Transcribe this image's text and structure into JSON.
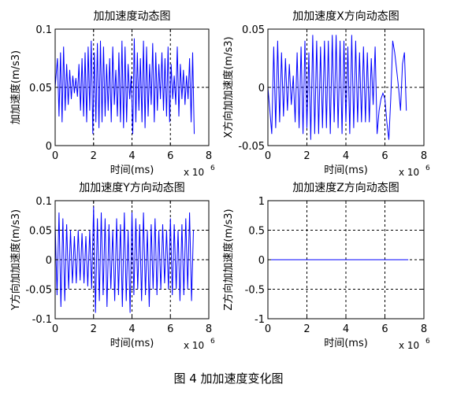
{
  "caption": "图 4  加加速度变化图",
  "chart_data": [
    {
      "type": "line",
      "title": "加加速度动态图",
      "xlabel": "时间(ms)",
      "ylabel": "加加速度(m/s3)",
      "x_multiplier": "x 10",
      "x_exponent": "6",
      "xlim": [
        0,
        8
      ],
      "ylim": [
        0,
        0.1
      ],
      "xticks": [
        "0",
        "2",
        "4",
        "6",
        "8"
      ],
      "yticks": [
        "0",
        "0.05",
        "0.1"
      ],
      "grid": true,
      "color": "#0000ff",
      "x": [
        0.0,
        0.12,
        0.2,
        0.28,
        0.36,
        0.44,
        0.52,
        0.6,
        0.68,
        0.76,
        0.84,
        0.92,
        1.0,
        1.08,
        1.16,
        1.24,
        1.32,
        1.4,
        1.48,
        1.56,
        1.64,
        1.72,
        1.8,
        1.88,
        1.96,
        2.04,
        2.12,
        2.2,
        2.28,
        2.36,
        2.44,
        2.52,
        2.6,
        2.68,
        2.76,
        2.84,
        2.92,
        3.0,
        3.08,
        3.16,
        3.24,
        3.32,
        3.4,
        3.48,
        3.56,
        3.64,
        3.72,
        3.8,
        3.88,
        3.96,
        4.04,
        4.12,
        4.2,
        4.28,
        4.36,
        4.44,
        4.52,
        4.6,
        4.68,
        4.76,
        4.84,
        4.92,
        5.0,
        5.08,
        5.16,
        5.24,
        5.32,
        5.4,
        5.48,
        5.56,
        5.64,
        5.72,
        5.8,
        5.88,
        5.96,
        6.04,
        6.12,
        6.2,
        6.28,
        6.36,
        6.44,
        6.52,
        6.6,
        6.68,
        6.76,
        6.84,
        6.92,
        7.0,
        7.08,
        7.16,
        7.24
      ],
      "y": [
        0.05,
        0.075,
        0.025,
        0.08,
        0.02,
        0.085,
        0.03,
        0.07,
        0.035,
        0.065,
        0.04,
        0.06,
        0.045,
        0.058,
        0.042,
        0.07,
        0.03,
        0.075,
        0.025,
        0.08,
        0.02,
        0.085,
        0.03,
        0.09,
        0.01,
        0.08,
        0.02,
        0.088,
        0.015,
        0.09,
        0.02,
        0.085,
        0.025,
        0.07,
        0.03,
        0.075,
        0.02,
        0.085,
        0.035,
        0.065,
        0.025,
        0.08,
        0.02,
        0.09,
        0.015,
        0.085,
        0.02,
        0.07,
        0.04,
        0.06,
        0.01,
        0.092,
        0.02,
        0.08,
        0.03,
        0.075,
        0.02,
        0.09,
        0.015,
        0.085,
        0.025,
        0.07,
        0.035,
        0.088,
        0.02,
        0.08,
        0.03,
        0.07,
        0.04,
        0.08,
        0.03,
        0.075,
        0.025,
        0.085,
        0.02,
        0.07,
        0.04,
        0.06,
        0.035,
        0.085,
        0.025,
        0.07,
        0.04,
        0.065,
        0.035,
        0.06,
        0.04,
        0.075,
        0.02,
        0.08,
        0.01
      ]
    },
    {
      "type": "line",
      "title": "加加速度X方向动态图",
      "xlabel": "时间(ms)",
      "ylabel": "X方向加加速度(m/s3)",
      "x_multiplier": "x 10",
      "x_exponent": "6",
      "xlim": [
        0,
        8
      ],
      "ylim": [
        -0.05,
        0.05
      ],
      "xticks": [
        "0",
        "2",
        "4",
        "6",
        "8"
      ],
      "yticks": [
        "-0.05",
        "0",
        "0.05"
      ],
      "grid": true,
      "color": "#0000ff",
      "x": [
        0.0,
        0.1,
        0.2,
        0.3,
        0.4,
        0.5,
        0.6,
        0.7,
        0.8,
        0.9,
        1.0,
        1.1,
        1.2,
        1.3,
        1.4,
        1.5,
        1.6,
        1.7,
        1.8,
        1.9,
        2.0,
        2.1,
        2.2,
        2.3,
        2.4,
        2.5,
        2.6,
        2.7,
        2.8,
        2.9,
        3.0,
        3.1,
        3.2,
        3.3,
        3.4,
        3.5,
        3.6,
        3.7,
        3.8,
        3.9,
        4.0,
        4.1,
        4.2,
        4.3,
        4.4,
        4.5,
        4.6,
        4.7,
        4.8,
        4.9,
        5.0,
        5.1,
        5.2,
        5.3,
        5.4,
        5.5,
        5.6,
        5.7,
        5.8,
        5.9,
        6.0,
        6.1,
        6.2,
        6.3,
        6.4,
        6.5,
        6.6,
        6.7,
        6.8,
        6.9,
        7.0,
        7.1
      ],
      "y": [
        0.0,
        -0.02,
        -0.04,
        0.035,
        -0.035,
        0.04,
        -0.03,
        0.03,
        -0.025,
        0.025,
        -0.02,
        0.02,
        -0.015,
        0.01,
        -0.03,
        0.03,
        -0.035,
        0.035,
        -0.04,
        0.04,
        -0.035,
        0.03,
        -0.045,
        0.045,
        -0.04,
        0.04,
        -0.04,
        0.035,
        -0.035,
        0.04,
        -0.035,
        0.04,
        -0.04,
        0.045,
        -0.03,
        0.045,
        -0.035,
        0.04,
        -0.04,
        0.04,
        -0.03,
        0.035,
        -0.04,
        0.045,
        -0.035,
        0.04,
        -0.03,
        0.03,
        -0.03,
        0.035,
        -0.03,
        0.03,
        -0.03,
        0.025,
        -0.015,
        0.035,
        -0.04,
        -0.02,
        -0.01,
        -0.005,
        -0.01,
        -0.03,
        -0.045,
        -0.01,
        0.04,
        0.03,
        0.015,
        0.0,
        -0.02,
        0.02,
        0.03,
        -0.02
      ]
    },
    {
      "type": "line",
      "title": "加加速度Y方向动态图",
      "xlabel": "时间(ms)",
      "ylabel": "Y方向加加速度(m/s3)",
      "x_multiplier": "x 10",
      "x_exponent": "6",
      "xlim": [
        0,
        8
      ],
      "ylim": [
        -0.1,
        0.1
      ],
      "xticks": [
        "0",
        "2",
        "4",
        "6",
        "8"
      ],
      "yticks": [
        "-0.1",
        "-0.05",
        "0",
        "0.05",
        "0.1"
      ],
      "grid": true,
      "color": "#0000ff",
      "x": [
        0.0,
        0.1,
        0.2,
        0.3,
        0.4,
        0.5,
        0.6,
        0.7,
        0.8,
        0.9,
        1.0,
        1.1,
        1.2,
        1.3,
        1.4,
        1.5,
        1.6,
        1.7,
        1.8,
        1.9,
        2.0,
        2.1,
        2.2,
        2.3,
        2.4,
        2.5,
        2.6,
        2.7,
        2.8,
        2.9,
        3.0,
        3.1,
        3.2,
        3.3,
        3.4,
        3.5,
        3.6,
        3.7,
        3.8,
        3.9,
        4.0,
        4.1,
        4.2,
        4.3,
        4.4,
        4.5,
        4.6,
        4.7,
        4.8,
        4.9,
        5.0,
        5.1,
        5.2,
        5.3,
        5.4,
        5.5,
        5.6,
        5.7,
        5.8,
        5.9,
        6.0,
        6.1,
        6.2,
        6.3,
        6.4,
        6.5,
        6.6,
        6.7,
        6.8,
        6.9,
        7.0,
        7.1,
        7.2
      ],
      "y": [
        0.06,
        -0.06,
        0.08,
        -0.08,
        0.07,
        -0.07,
        0.06,
        -0.05,
        0.05,
        -0.04,
        0.04,
        -0.04,
        0.05,
        -0.035,
        0.045,
        -0.04,
        0.04,
        -0.045,
        0.05,
        -0.05,
        0.09,
        -0.09,
        0.07,
        -0.07,
        0.08,
        -0.06,
        0.07,
        -0.08,
        0.06,
        -0.05,
        0.05,
        -0.07,
        0.07,
        -0.06,
        0.06,
        -0.08,
        0.08,
        -0.07,
        0.05,
        -0.09,
        0.08,
        -0.06,
        0.07,
        -0.05,
        0.06,
        -0.07,
        0.08,
        -0.06,
        0.05,
        -0.08,
        0.06,
        -0.05,
        0.07,
        -0.06,
        0.05,
        -0.05,
        0.06,
        -0.04,
        0.05,
        -0.05,
        0.07,
        -0.06,
        0.06,
        -0.05,
        0.05,
        -0.07,
        0.06,
        -0.06,
        0.07,
        -0.05,
        0.08,
        -0.07,
        0.05
      ]
    },
    {
      "type": "line",
      "title": "加加速度Z方向动态图",
      "xlabel": "时间(ms)",
      "ylabel": "Z方向加加速度(m/s3)",
      "x_multiplier": "x 10",
      "x_exponent": "6",
      "xlim": [
        0,
        8
      ],
      "ylim": [
        -1,
        1
      ],
      "xticks": [
        "0",
        "2",
        "4",
        "6",
        "8"
      ],
      "yticks": [
        "-1",
        "-0.5",
        "0",
        "0.5",
        "1"
      ],
      "grid": true,
      "color": "#0000ff",
      "x": [
        0,
        7.2
      ],
      "y": [
        0,
        0
      ]
    }
  ]
}
